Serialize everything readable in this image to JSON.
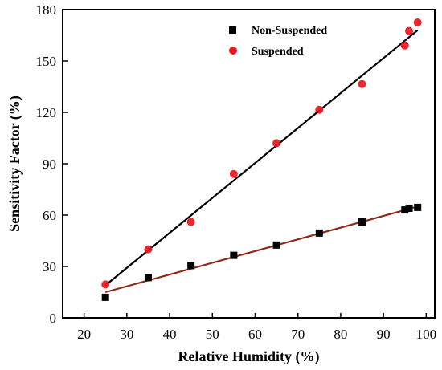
{
  "chart_data": {
    "type": "scatter",
    "title": "",
    "xlabel": "Relative Humidity (%)",
    "ylabel": "Sensitivity Factor (%)",
    "xlim": [
      15,
      102
    ],
    "ylim": [
      0,
      180
    ],
    "xticks": [
      20,
      30,
      40,
      50,
      60,
      70,
      80,
      90,
      100
    ],
    "yticks": [
      0,
      30,
      60,
      90,
      120,
      150,
      180
    ],
    "grid": false,
    "legend_position": "top-right",
    "series": [
      {
        "name": "Non-Suspended",
        "marker": "square",
        "color": "#000000",
        "x": [
          25,
          35,
          45,
          55,
          65,
          75,
          85,
          95,
          96,
          98
        ],
        "y": [
          12,
          23.5,
          30.5,
          36.5,
          42.5,
          49.5,
          56,
          63,
          64,
          64.5
        ],
        "fit_line": {
          "x": [
            25,
            98
          ],
          "y": [
            15,
            65
          ],
          "color": "#8b2a1a"
        }
      },
      {
        "name": "Suspended",
        "marker": "circle",
        "color": "#e8161e",
        "x": [
          25,
          35,
          45,
          55,
          65,
          75,
          85,
          95,
          96,
          98
        ],
        "y": [
          19.5,
          40,
          56,
          84,
          102,
          121.5,
          136.5,
          159,
          167.5,
          172.5
        ],
        "fit_line": {
          "x": [
            25,
            98
          ],
          "y": [
            19,
            168
          ],
          "color": "#000000"
        }
      }
    ]
  }
}
